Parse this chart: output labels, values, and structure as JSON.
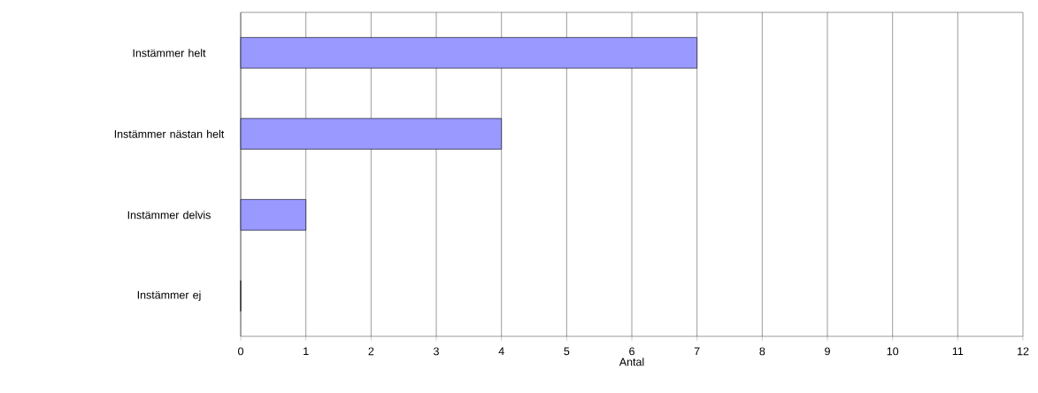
{
  "chart_data": {
    "type": "bar",
    "orientation": "horizontal",
    "categories": [
      "Instämmer helt",
      "Instämmer nästan helt",
      "Instämmer delvis",
      "Instämmer ej"
    ],
    "values": [
      7,
      4,
      1,
      0
    ],
    "color": "#9999ff",
    "xlabel": "Antal",
    "xlim": [
      0,
      12
    ],
    "xticks": [
      0,
      1,
      2,
      3,
      4,
      5,
      6,
      7,
      8,
      9,
      10,
      11,
      12
    ],
    "grid": "x"
  }
}
